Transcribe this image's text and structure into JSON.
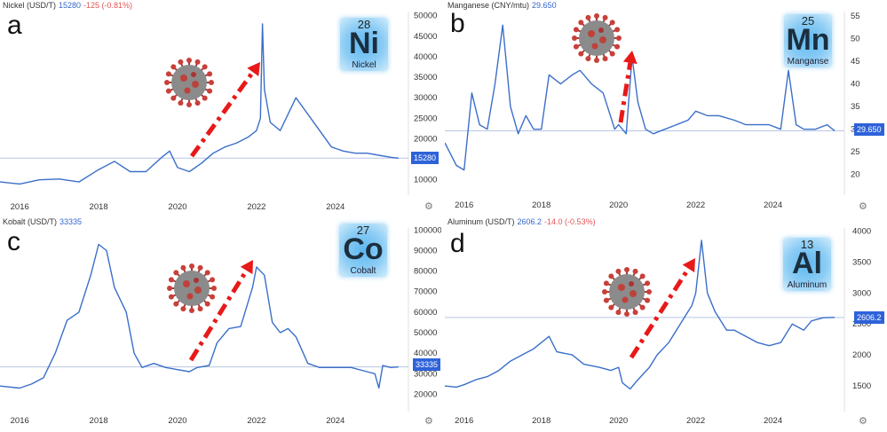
{
  "charts": [
    {
      "panel_letter": "a",
      "header": {
        "name": "Nickel (USD/T)",
        "last": "15280",
        "change": "-125 (-0.81%)"
      },
      "element": {
        "number": "28",
        "symbol": "Ni",
        "name": "Nickel"
      },
      "last_badge": "15280",
      "colors": {
        "line": "#3b6fc9",
        "arrow": "#e81919",
        "hline": "#b8c6e6"
      }
    },
    {
      "panel_letter": "b",
      "header": {
        "name": "Manganese (CNY/mtu)",
        "last": "29.650",
        "change": ""
      },
      "element": {
        "number": "25",
        "symbol": "Mn",
        "name": "Manganse"
      },
      "last_badge": "29.650",
      "colors": {
        "line": "#3b6fc9",
        "arrow": "#e81919",
        "hline": "#b8c6e6"
      }
    },
    {
      "panel_letter": "c",
      "header": {
        "name": "Kobalt (USD/T)",
        "last": "33335",
        "change": ""
      },
      "element": {
        "number": "27",
        "symbol": "Co",
        "name": "Cobalt"
      },
      "last_badge": "33335",
      "colors": {
        "line": "#3b6fc9",
        "arrow": "#e81919",
        "hline": "#b8c6e6"
      }
    },
    {
      "panel_letter": "d",
      "header": {
        "name": "Aluminum (USD/T)",
        "last": "2606.2",
        "change": "-14.0 (-0.53%)"
      },
      "element": {
        "number": "13",
        "symbol": "Al",
        "name": "Aluminum"
      },
      "last_badge": "2606.2",
      "colors": {
        "line": "#3b6fc9",
        "arrow": "#e81919",
        "hline": "#b8c6e6"
      }
    }
  ],
  "icons": {
    "virus": "coronavirus-icon",
    "settings": "gear-icon",
    "trend": "dash-dot-arrow-icon"
  },
  "chart_data": [
    {
      "type": "line",
      "series": [
        {
          "name": "Nickel (USD/T)",
          "x": [
            2015.5,
            2016.0,
            2016.5,
            2017.0,
            2017.5,
            2018.0,
            2018.4,
            2018.8,
            2019.2,
            2019.6,
            2019.8,
            2020.0,
            2020.3,
            2020.6,
            2020.9,
            2021.2,
            2021.5,
            2021.8,
            2022.0,
            2022.1,
            2022.15,
            2022.2,
            2022.35,
            2022.6,
            2022.9,
            2023.0,
            2023.3,
            2023.6,
            2023.9,
            2024.2,
            2024.5,
            2024.8,
            2025.1,
            2025.4,
            2025.6
          ],
          "y": [
            9500,
            9000,
            10000,
            10200,
            9500,
            12500,
            14500,
            12000,
            12000,
            15500,
            17000,
            13000,
            12000,
            14000,
            16500,
            18000,
            19000,
            20500,
            22000,
            25000,
            48000,
            32000,
            24000,
            22000,
            28000,
            30000,
            26000,
            22000,
            18000,
            17000,
            16500,
            16500,
            16000,
            15500,
            15280
          ]
        }
      ],
      "xticks": [
        "2016",
        "2018",
        "2020",
        "2022",
        "2024"
      ],
      "yticks": [
        "10000",
        "15000",
        "20000",
        "25000",
        "30000",
        "35000",
        "40000",
        "45000",
        "50000"
      ],
      "xlim": [
        2015.5,
        2025.85
      ],
      "ylim": [
        8000,
        51000
      ],
      "last_value": 15280
    },
    {
      "type": "line",
      "series": [
        {
          "name": "Manganese (CNY/mtu)",
          "x": [
            2015.5,
            2015.8,
            2016.0,
            2016.2,
            2016.4,
            2016.6,
            2016.8,
            2017.0,
            2017.2,
            2017.4,
            2017.6,
            2017.8,
            2018.0,
            2018.2,
            2018.5,
            2018.8,
            2019.0,
            2019.3,
            2019.6,
            2019.9,
            2020.0,
            2020.2,
            2020.35,
            2020.5,
            2020.7,
            2020.9,
            2021.2,
            2021.5,
            2021.8,
            2022.0,
            2022.3,
            2022.6,
            2023.0,
            2023.3,
            2023.6,
            2023.9,
            2024.2,
            2024.4,
            2024.6,
            2024.8,
            2025.1,
            2025.4,
            2025.6
          ],
          "y": [
            27,
            22,
            21,
            38,
            31,
            30,
            40,
            53,
            35,
            29,
            33,
            30,
            30,
            42,
            40,
            42,
            43,
            40,
            38,
            30,
            31,
            29,
            46,
            36,
            30,
            29,
            30,
            31,
            32,
            34,
            33,
            33,
            32,
            31,
            31,
            31,
            30,
            43,
            31,
            30,
            30,
            31,
            29.65
          ]
        }
      ],
      "xticks": [
        "2016",
        "2018",
        "2020",
        "2022",
        "2024"
      ],
      "yticks": [
        "20",
        "25",
        "30",
        "35",
        "40",
        "45",
        "50",
        "55"
      ],
      "xlim": [
        2015.5,
        2025.85
      ],
      "ylim": [
        17,
        56
      ],
      "last_value": 29.65
    },
    {
      "type": "line",
      "series": [
        {
          "name": "Kobalt (USD/T)",
          "x": [
            2015.5,
            2016.0,
            2016.3,
            2016.6,
            2016.9,
            2017.2,
            2017.5,
            2017.8,
            2018.0,
            2018.2,
            2018.4,
            2018.7,
            2018.9,
            2019.1,
            2019.4,
            2019.7,
            2020.0,
            2020.3,
            2020.5,
            2020.8,
            2021.0,
            2021.3,
            2021.6,
            2021.9,
            2022.0,
            2022.2,
            2022.4,
            2022.6,
            2022.8,
            2023.0,
            2023.3,
            2023.6,
            2024.0,
            2024.4,
            2024.8,
            2025.0,
            2025.1,
            2025.2,
            2025.4,
            2025.6
          ],
          "y": [
            24000,
            23000,
            25000,
            28000,
            40000,
            56000,
            60000,
            78000,
            93000,
            90000,
            72000,
            60000,
            40000,
            33000,
            35000,
            33000,
            32000,
            31000,
            33000,
            34000,
            45000,
            52000,
            53000,
            72000,
            82000,
            78000,
            55000,
            50000,
            52000,
            48000,
            35000,
            33000,
            33000,
            33000,
            31000,
            30000,
            23000,
            34000,
            33000,
            33335
          ]
        }
      ],
      "xticks": [
        "2016",
        "2018",
        "2020",
        "2022",
        "2024"
      ],
      "yticks": [
        "20000",
        "30000",
        "40000",
        "50000",
        "60000",
        "70000",
        "80000",
        "90000",
        "100000"
      ],
      "xlim": [
        2015.5,
        2025.85
      ],
      "ylim": [
        15000,
        101000
      ],
      "last_value": 33335
    },
    {
      "type": "line",
      "series": [
        {
          "name": "Aluminum (USD/T)",
          "x": [
            2015.5,
            2015.8,
            2016.0,
            2016.3,
            2016.6,
            2016.9,
            2017.2,
            2017.5,
            2017.8,
            2018.0,
            2018.2,
            2018.4,
            2018.8,
            2019.1,
            2019.5,
            2019.8,
            2020.0,
            2020.1,
            2020.3,
            2020.5,
            2020.8,
            2021.0,
            2021.3,
            2021.6,
            2021.9,
            2022.0,
            2022.15,
            2022.3,
            2022.5,
            2022.8,
            2023.0,
            2023.3,
            2023.6,
            2023.9,
            2024.2,
            2024.5,
            2024.8,
            2025.0,
            2025.3,
            2025.6
          ],
          "y": [
            1500,
            1480,
            1520,
            1600,
            1650,
            1750,
            1900,
            2000,
            2100,
            2200,
            2300,
            2050,
            2000,
            1850,
            1800,
            1750,
            1800,
            1550,
            1450,
            1600,
            1800,
            2000,
            2200,
            2500,
            2800,
            3000,
            3850,
            3000,
            2700,
            2400,
            2400,
            2300,
            2200,
            2150,
            2200,
            2500,
            2400,
            2550,
            2600,
            2606.2
          ]
        }
      ],
      "xticks": [
        "2016",
        "2018",
        "2020",
        "2022",
        "2024"
      ],
      "yticks": [
        "1500",
        "2000",
        "2500",
        "3000",
        "3500",
        "4000"
      ],
      "xlim": [
        2015.5,
        2025.85
      ],
      "ylim": [
        1200,
        4050
      ],
      "last_value": 2606.2
    }
  ]
}
